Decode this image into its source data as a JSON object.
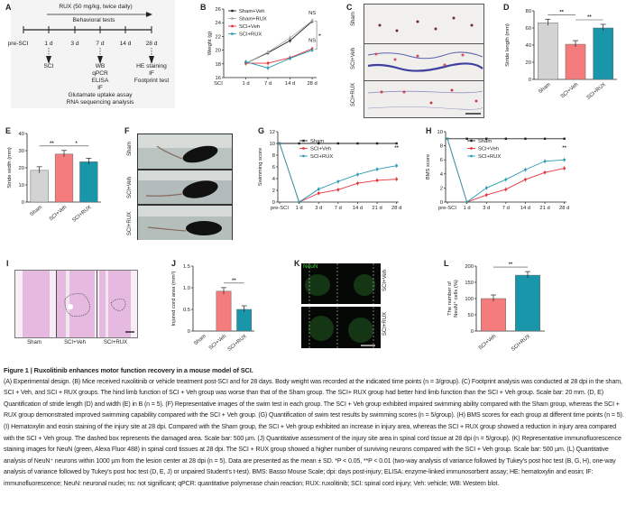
{
  "panels": {
    "A": "A",
    "B": "B",
    "C": "C",
    "D": "D",
    "E": "E",
    "F": "F",
    "G": "G",
    "H": "H",
    "I": "I",
    "J": "J",
    "K": "K",
    "L": "L"
  },
  "design": {
    "treatment": "RUX (50 mg/kg, twice daily)",
    "behavior": "Behavioral tests",
    "timepoints": [
      "pre-SCI",
      "1 d",
      "3 d",
      "7 d",
      "14 d",
      "28 d"
    ],
    "day1": [
      "SCI"
    ],
    "day7": [
      "WB",
      "qPCR",
      "ELISA",
      "IF"
    ],
    "day28": [
      "HE staining",
      "IF",
      "Footprint test"
    ],
    "extra": [
      "Glutamate uptake assay",
      "RNA sequencing analysis"
    ]
  },
  "footprint": {
    "rows": [
      "Sham",
      "SCI+Veh",
      "SCI+RUX"
    ]
  },
  "swim": {
    "rows": [
      "Sham",
      "SCI+Veh",
      "SCI+RUX"
    ]
  },
  "he": {
    "cols": [
      "Sham",
      "SCI+Veh",
      "SCI+RUX"
    ]
  },
  "if": {
    "stain": "NeuN",
    "rows": [
      "SCI+Veh",
      "SCI+RUX"
    ]
  },
  "colors": {
    "sham": "#d3d3d3",
    "veh": "#f47c7c",
    "rux": "#1a96aa",
    "line_sham": "#222222",
    "line_sham_rux": "#a9a9a9",
    "line_veh": "#e4323b",
    "line_rux": "#2b9bb2"
  },
  "chart_data": [
    {
      "id": "B",
      "type": "line",
      "ylabel": "Weight (g)",
      "ylim": [
        16,
        26
      ],
      "yticks": [
        16,
        18,
        20,
        22,
        24,
        26
      ],
      "x_prefix": "SCI",
      "categories": [
        "1 d",
        "7 d",
        "14 d",
        "28 d"
      ],
      "legend": "top-left",
      "series": [
        {
          "name": "Sham+Veh",
          "color": "#222222",
          "values": [
            18.1,
            19.6,
            21.4,
            24.2
          ]
        },
        {
          "name": "Sham+RUX",
          "color": "#a9a9a9",
          "values": [
            18.1,
            19.7,
            21.8,
            24.3
          ]
        },
        {
          "name": "SCI+Veh",
          "color": "#e4323b",
          "values": [
            18.1,
            18.1,
            18.9,
            20.2
          ]
        },
        {
          "name": "SCI+RUX",
          "color": "#2b9bb2",
          "values": [
            18.3,
            17.4,
            18.8,
            20.0
          ]
        }
      ],
      "annotations": [
        {
          "text": "NS",
          "at": "28 d",
          "y": 25.2
        },
        {
          "text": "NS",
          "at": "28 d",
          "y": 21.2
        },
        {
          "text": "**",
          "bracket": true
        }
      ]
    },
    {
      "id": "D",
      "type": "bar",
      "ylabel": "Stride length (mm)",
      "ylim": [
        0,
        80
      ],
      "yticks": [
        0,
        20,
        40,
        60,
        80
      ],
      "categories": [
        "Sham",
        "SCI+Veh",
        "SCI+RUX"
      ],
      "values": [
        66,
        41,
        60
      ],
      "colors": [
        "#d3d3d3",
        "#f47c7c",
        "#1a96aa"
      ],
      "annotations": [
        {
          "text": "**",
          "between": [
            0,
            1
          ]
        },
        {
          "text": "**",
          "between": [
            1,
            2
          ]
        }
      ]
    },
    {
      "id": "E",
      "type": "bar",
      "ylabel": "Stride width (mm)",
      "ylim": [
        0,
        40
      ],
      "yticks": [
        0,
        10,
        20,
        30,
        40
      ],
      "categories": [
        "Sham",
        "SCI+Veh",
        "SCI+RUX"
      ],
      "values": [
        18.5,
        28,
        23.5
      ],
      "colors": [
        "#d3d3d3",
        "#f47c7c",
        "#1a96aa"
      ],
      "annotations": [
        {
          "text": "**",
          "between": [
            0,
            1
          ]
        },
        {
          "text": "*",
          "between": [
            1,
            2
          ]
        }
      ]
    },
    {
      "id": "G",
      "type": "line",
      "ylabel": "Swimming score",
      "ylim": [
        0,
        12
      ],
      "yticks": [
        0,
        2,
        4,
        6,
        8,
        10,
        12
      ],
      "categories": [
        "pre-SCI",
        "1 d",
        "3 d",
        "7 d",
        "14 d",
        "21 d",
        "28 d"
      ],
      "legend": "top-left",
      "series": [
        {
          "name": "Sham",
          "color": "#222222",
          "values": [
            10,
            10,
            10,
            10,
            10,
            10,
            10
          ]
        },
        {
          "name": "SCI+Veh",
          "color": "#e4323b",
          "values": [
            10,
            0,
            1.5,
            2.1,
            3.2,
            3.7,
            3.9
          ]
        },
        {
          "name": "SCI+RUX",
          "color": "#2b9bb2",
          "values": [
            10,
            0,
            2.2,
            3.5,
            4.7,
            5.6,
            6.2
          ]
        }
      ],
      "annotations": [
        {
          "text": "**",
          "at": "28 d",
          "y": 9.0
        }
      ]
    },
    {
      "id": "H",
      "type": "line",
      "ylabel": "BMS score",
      "ylim": [
        0,
        10
      ],
      "yticks": [
        0,
        2,
        4,
        6,
        8,
        10
      ],
      "categories": [
        "pre-SCI",
        "1 d",
        "3 d",
        "7 d",
        "14 d",
        "21 d",
        "28 d"
      ],
      "legend": "top-left",
      "series": [
        {
          "name": "Sham",
          "color": "#222222",
          "values": [
            9,
            9,
            9,
            9,
            9,
            9,
            9
          ]
        },
        {
          "name": "SCI+Veh",
          "color": "#e4323b",
          "values": [
            9,
            0,
            1.0,
            1.8,
            3.2,
            4.2,
            4.8
          ]
        },
        {
          "name": "SCI+RUX",
          "color": "#2b9bb2",
          "values": [
            9,
            0,
            2.0,
            3.2,
            4.6,
            5.8,
            6.0
          ]
        }
      ],
      "annotations": [
        {
          "text": "**",
          "at": "28 d",
          "y": 7.5
        }
      ]
    },
    {
      "id": "J",
      "type": "bar",
      "ylabel": "Injured cord area (mm²)",
      "ylim": [
        0,
        1.5
      ],
      "yticks": [
        0,
        0.5,
        1.0,
        1.5
      ],
      "ytick_labels": [
        "0",
        "0.5",
        "1.0",
        "1.5"
      ],
      "categories": [
        "Sham",
        "SCI+Veh",
        "SCI+RUX"
      ],
      "values": [
        0,
        0.92,
        0.5
      ],
      "colors": [
        "#d3d3d3",
        "#f47c7c",
        "#1a96aa"
      ],
      "annotations": [
        {
          "text": "**",
          "between": [
            1,
            2
          ]
        }
      ]
    },
    {
      "id": "L",
      "type": "bar",
      "ylabel": "The number of NeuN⁺ cells (%)",
      "ylim": [
        0,
        200
      ],
      "yticks": [
        0,
        50,
        100,
        150,
        200
      ],
      "categories": [
        "SCI+Veh",
        "SCI+RUX"
      ],
      "values": [
        100,
        172
      ],
      "colors": [
        "#f47c7c",
        "#1a96aa"
      ],
      "annotations": [
        {
          "text": "**",
          "between": [
            0,
            1
          ]
        }
      ]
    }
  ],
  "caption": {
    "title": "Figure 1 | Ruxolitinib enhances motor function recovery in a mouse model of SCI.",
    "body": "(A) Experimental design. (B) Mice received ruxolitinib or vehicle treatment post-SCI and for 28 days. Body weight was recorded at the indicated time points (n = 3/group). (C) Footprint analysis was conducted at 28 dpi in the sham, SCI + Veh, and SCI + RUX groups. The hind limb function of SCI + Veh group was worse than that of the Sham group. The SCI+ RUX group had better hind limb function than the SCI + Veh group. Scale bar: 20 mm. (D, E) Quantification of stride length (D) and width (E) in B (n = 5). (F) Representative images of the swim test in each group. The SCI + Veh group exhibited impaired swimming ability compared with the Sham group, whereas the SCI + RUX group demonstrated improved swimming capability compared with the SCI + Veh group. (G) Quantification of swim test results by swimming scores (n = 5/group). (H) BMS scores for each group at different time points (n = 5). (I) Hematoxylin and eosin staining of the injury site at 28 dpi. Compared with the Sham group, the SCI + Veh group exhibited an increase in injury area, whereas the SCI + RUX group showed a reduction in injury area compared with the SCI + Veh group. The dashed box represents the damaged area. Scale bar: 500 µm. (J) Quantitative assessment of the injury site area in spinal cord tissue at 28 dpi (n = 5/group). (K) Representative immunofluorescence staining images for NeuN (green, Alexa Fluor 488) in spinal cord tissues at 28 dpi. The SCI + RUX group showed a higher number of surviving neurons compared with the SCI + Veh group. Scale bar: 500 µm. (L) Quantitative analysis of NeuN⁺ neurons within 1000 µm from the lesion center at 28 dpi (n = 5). Data are presented as the mean ± SD. *P < 0.05, **P < 0.01 (two-way analysis of variance followed by Tukey's post hoc test (B, G, H), one-way analysis of variance followed by Tukey's post hoc test (D, E, J) or unpaired Student's t-test). BMS: Basso Mouse Scale; dpi: days post-injury; ELISA: enzyme-linked immunosorbent assay; HE: hematoxylin and eosin; IF: immunofluorescence; NeuN: neuronal nuclei; ns: not significant; qPCR: quantitative polymerase chain reaction; RUX: ruxolitinib; SCI: spinal cord injury; Veh: vehicle; WB: Western blot."
  }
}
